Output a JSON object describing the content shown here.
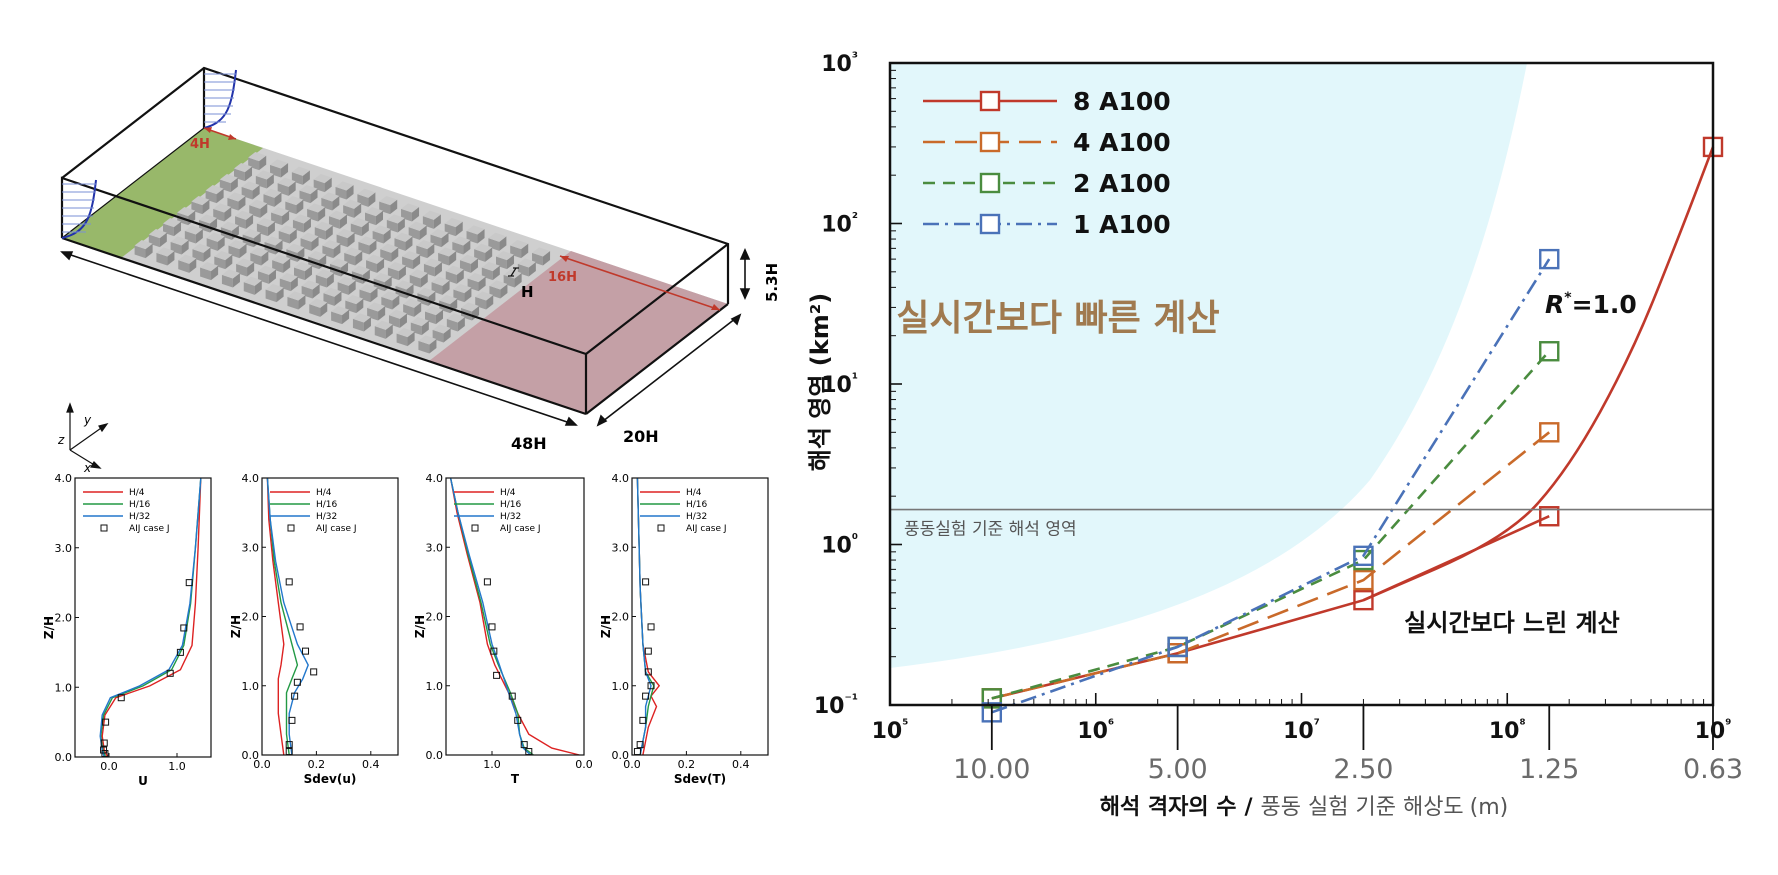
{
  "domain_figure": {
    "tunnel_labels": {
      "inlet_length": "4H",
      "outlet_length": "16H",
      "height": "5.3H",
      "length": "48H",
      "width": "20H",
      "block_height": "H"
    },
    "axes_labels": {
      "x": "x",
      "y": "y",
      "z": "z"
    },
    "colors": {
      "inlet": "#98b86a",
      "outlet": "#c4a0a6",
      "blocks": "#b5b5b5",
      "floor": "#cfcfcf",
      "profile": "#2233aa"
    }
  },
  "small_legend": [
    "H/4",
    "H/16",
    "H/32",
    "AIJ case J"
  ],
  "small_colors": [
    "#dd2222",
    "#229944",
    "#2277cc",
    "#000000"
  ],
  "chart_data": [
    {
      "type": "line",
      "xlabel": "U",
      "ylabel": "Z/H",
      "xlim": [
        -0.5,
        1.5
      ],
      "ylim": [
        0,
        4
      ],
      "xticks": [
        0.0,
        1.0
      ],
      "xtick_labels": [
        "0.0",
        "1.0"
      ],
      "yticks": [
        0,
        1,
        2,
        3,
        4
      ],
      "ytick_labels": [
        "0.0",
        "1.0",
        "2.0",
        "3.0",
        "4.0"
      ],
      "series": [
        {
          "name": "H/4",
          "x": [
            -0.02,
            -0.07,
            -0.1,
            -0.06,
            0.1,
            0.6,
            1.05,
            1.22,
            1.27,
            1.31,
            1.35
          ],
          "y": [
            0.0,
            0.1,
            0.3,
            0.6,
            0.85,
            1.02,
            1.25,
            1.6,
            2.2,
            3.0,
            4.0
          ]
        },
        {
          "name": "H/16",
          "x": [
            -0.05,
            -0.09,
            -0.12,
            -0.08,
            0.05,
            0.5,
            0.92,
            1.1,
            1.2,
            1.27,
            1.35
          ],
          "y": [
            0.0,
            0.1,
            0.3,
            0.6,
            0.85,
            1.02,
            1.25,
            1.6,
            2.2,
            3.0,
            4.0
          ]
        },
        {
          "name": "H/32",
          "x": [
            -0.07,
            -0.1,
            -0.13,
            -0.1,
            0.02,
            0.45,
            0.88,
            1.08,
            1.19,
            1.27,
            1.35
          ],
          "y": [
            0.0,
            0.1,
            0.3,
            0.6,
            0.85,
            1.02,
            1.25,
            1.6,
            2.2,
            3.0,
            4.0
          ]
        }
      ],
      "points": {
        "name": "AIJ case J",
        "x": [
          -0.06,
          -0.08,
          -0.07,
          -0.05,
          0.18,
          0.9,
          1.05,
          1.1,
          1.18
        ],
        "y": [
          0.05,
          0.1,
          0.2,
          0.5,
          0.85,
          1.2,
          1.5,
          1.85,
          2.5
        ]
      }
    },
    {
      "type": "line",
      "xlabel": "Sdev(u)",
      "ylabel": "Z/H",
      "xlim": [
        0,
        0.5
      ],
      "ylim": [
        0,
        4
      ],
      "xticks": [
        0.0,
        0.2,
        0.4
      ],
      "xtick_labels": [
        "0.0",
        "0.2",
        "0.4"
      ],
      "yticks": [
        0,
        1,
        2,
        3,
        4
      ],
      "ytick_labels": [
        "0.0",
        "1.0",
        "2.0",
        "3.0",
        "4.0"
      ],
      "series": [
        {
          "name": "H/4",
          "x": [
            0.08,
            0.07,
            0.06,
            0.06,
            0.06,
            0.07,
            0.08,
            0.06,
            0.04,
            0.025,
            0.02
          ],
          "y": [
            0.0,
            0.3,
            0.6,
            0.9,
            1.1,
            1.3,
            1.6,
            2.2,
            2.8,
            3.4,
            4.0
          ]
        },
        {
          "name": "H/16",
          "x": [
            0.1,
            0.09,
            0.09,
            0.09,
            0.11,
            0.13,
            0.11,
            0.07,
            0.045,
            0.03,
            0.02
          ],
          "y": [
            0.0,
            0.3,
            0.6,
            0.9,
            1.1,
            1.3,
            1.6,
            2.2,
            2.8,
            3.4,
            4.0
          ]
        },
        {
          "name": "H/32",
          "x": [
            0.11,
            0.1,
            0.1,
            0.12,
            0.15,
            0.17,
            0.13,
            0.08,
            0.05,
            0.03,
            0.02
          ],
          "y": [
            0.0,
            0.3,
            0.6,
            0.9,
            1.1,
            1.3,
            1.6,
            2.2,
            2.8,
            3.4,
            4.0
          ]
        }
      ],
      "points": {
        "name": "AIJ case J",
        "x": [
          0.1,
          0.1,
          0.11,
          0.12,
          0.13,
          0.19,
          0.16,
          0.14,
          0.1
        ],
        "y": [
          0.05,
          0.15,
          0.5,
          0.85,
          1.05,
          1.2,
          1.5,
          1.85,
          2.5
        ]
      }
    },
    {
      "type": "line",
      "xlabel": "T",
      "ylabel": "Z/H",
      "xlim": [
        1.5,
        0.0
      ],
      "ylim": [
        0,
        4
      ],
      "xticks": [
        1.0,
        0.0
      ],
      "xtick_labels": [
        "1.0",
        "0.0"
      ],
      "yticks": [
        0,
        1,
        2,
        3,
        4
      ],
      "ytick_labels": [
        "0.0",
        "1.0",
        "2.0",
        "3.0",
        "4.0"
      ],
      "series": [
        {
          "name": "H/4",
          "x": [
            0.05,
            0.35,
            0.6,
            0.72,
            0.82,
            0.97,
            1.05,
            1.13,
            1.27,
            1.38,
            1.45
          ],
          "y": [
            0.0,
            0.1,
            0.3,
            0.6,
            0.9,
            1.3,
            1.6,
            2.2,
            2.9,
            3.5,
            4.0
          ]
        },
        {
          "name": "H/16",
          "x": [
            0.55,
            0.65,
            0.7,
            0.72,
            0.8,
            0.93,
            1.02,
            1.12,
            1.26,
            1.37,
            1.45
          ],
          "y": [
            0.0,
            0.1,
            0.3,
            0.6,
            0.9,
            1.3,
            1.6,
            2.2,
            2.9,
            3.5,
            4.0
          ]
        },
        {
          "name": "H/32",
          "x": [
            0.58,
            0.66,
            0.7,
            0.74,
            0.82,
            0.92,
            1.0,
            1.1,
            1.25,
            1.37,
            1.45
          ],
          "y": [
            0.0,
            0.1,
            0.3,
            0.6,
            0.9,
            1.3,
            1.6,
            2.2,
            2.9,
            3.5,
            4.0
          ]
        }
      ],
      "points": {
        "name": "AIJ case J",
        "x": [
          0.6,
          0.65,
          0.72,
          0.78,
          0.95,
          0.98,
          1.0,
          1.05
        ],
        "y": [
          0.05,
          0.15,
          0.5,
          0.85,
          1.15,
          1.5,
          1.85,
          2.5
        ]
      }
    },
    {
      "type": "line",
      "xlabel": "Sdev(T)",
      "ylabel": "Z/H",
      "xlim": [
        0,
        0.5
      ],
      "ylim": [
        0,
        4
      ],
      "xticks": [
        0.0,
        0.2,
        0.4
      ],
      "xtick_labels": [
        "0.0",
        "0.2",
        "0.4"
      ],
      "yticks": [
        0,
        1,
        2,
        3,
        4
      ],
      "ytick_labels": [
        "0.0",
        "1.0",
        "2.0",
        "3.0",
        "4.0"
      ],
      "series": [
        {
          "name": "H/4",
          "x": [
            0.04,
            0.05,
            0.06,
            0.09,
            0.07,
            0.1,
            0.06,
            0.04,
            0.03,
            0.025,
            0.02
          ],
          "y": [
            0.0,
            0.2,
            0.4,
            0.7,
            0.85,
            1.0,
            1.2,
            1.6,
            2.4,
            3.2,
            4.0
          ]
        },
        {
          "name": "H/16",
          "x": [
            0.03,
            0.04,
            0.05,
            0.06,
            0.07,
            0.08,
            0.05,
            0.04,
            0.03,
            0.025,
            0.02
          ],
          "y": [
            0.0,
            0.2,
            0.4,
            0.7,
            0.85,
            1.0,
            1.2,
            1.6,
            2.4,
            3.2,
            4.0
          ]
        },
        {
          "name": "H/32",
          "x": [
            0.03,
            0.04,
            0.05,
            0.05,
            0.06,
            0.07,
            0.05,
            0.04,
            0.03,
            0.025,
            0.02
          ],
          "y": [
            0.0,
            0.2,
            0.4,
            0.7,
            0.85,
            1.0,
            1.2,
            1.6,
            2.4,
            3.2,
            4.0
          ]
        }
      ],
      "points": {
        "name": "AIJ case J",
        "x": [
          0.02,
          0.03,
          0.04,
          0.05,
          0.07,
          0.06,
          0.06,
          0.07,
          0.05
        ],
        "y": [
          0.05,
          0.15,
          0.5,
          0.85,
          1.0,
          1.2,
          1.5,
          1.85,
          2.5
        ]
      }
    },
    {
      "type": "line",
      "xlabel_main": "해석 격자의 수",
      "xlabel_sep": "/",
      "xlabel_sub": "풍동 실험 기준 해상도",
      "xlabel_unit": "(m)",
      "ylabel": "해석 영역 (km²)",
      "xscale": "log",
      "yscale": "log",
      "xlim": [
        100000,
        1000000000
      ],
      "ylim": [
        0.1,
        1000
      ],
      "xticks": [
        100000,
        1000000,
        10000000,
        100000000,
        1000000000
      ],
      "xtick_labels": [
        "10⁵",
        "10⁶",
        "10⁷",
        "10⁸",
        "10⁹"
      ],
      "yticks": [
        0.1,
        1,
        10,
        100,
        1000
      ],
      "ytick_labels": [
        "10⁻¹",
        "10⁰",
        "10¹",
        "10²",
        "10³"
      ],
      "secondary_xticks": [
        312500,
        2500000,
        20000000,
        160000000,
        1000000000
      ],
      "secondary_labels": [
        "10.00",
        "5.00",
        "2.50",
        "1.25",
        "0.63"
      ],
      "reference_line": {
        "y": 1.65,
        "label": "풍동실험 기준 해석 영역"
      },
      "region_labels": {
        "faster": "실시간보다 빠른 계산",
        "slower": "실시간보다 느린 계산"
      },
      "annotation": {
        "text": "R",
        "sup": "*",
        "rest": "=1.0"
      },
      "series": [
        {
          "name": "8 A100",
          "x": [
            312500,
            2500000,
            20000000,
            160000000
          ],
          "y": [
            0.11,
            0.21,
            0.45,
            1.5
          ],
          "dash": "solid",
          "color": "#c0392b"
        },
        {
          "name": "4 A100",
          "x": [
            312500,
            2500000,
            20000000,
            160000000
          ],
          "y": [
            0.11,
            0.21,
            0.6,
            5.0
          ],
          "dash": "long",
          "color": "#c96a2a"
        },
        {
          "name": "2 A100",
          "x": [
            312500,
            2500000,
            20000000,
            160000000
          ],
          "y": [
            0.11,
            0.23,
            0.8,
            16
          ],
          "dash": "short",
          "color": "#4a8c3f"
        },
        {
          "name": "1 A100",
          "x": [
            312500,
            2500000,
            20000000,
            160000000
          ],
          "y": [
            0.09,
            0.23,
            0.85,
            60
          ],
          "dash": "dashdot",
          "color": "#4a72b8"
        }
      ],
      "fit_curve": {
        "x": [
          20000000,
          100000000,
          200000000,
          400000000,
          700000000,
          1000000000
        ],
        "y": [
          0.45,
          1.1,
          3.0,
          15,
          90,
          300
        ]
      },
      "colors": {
        "region": "#e2f7fb"
      }
    }
  ]
}
